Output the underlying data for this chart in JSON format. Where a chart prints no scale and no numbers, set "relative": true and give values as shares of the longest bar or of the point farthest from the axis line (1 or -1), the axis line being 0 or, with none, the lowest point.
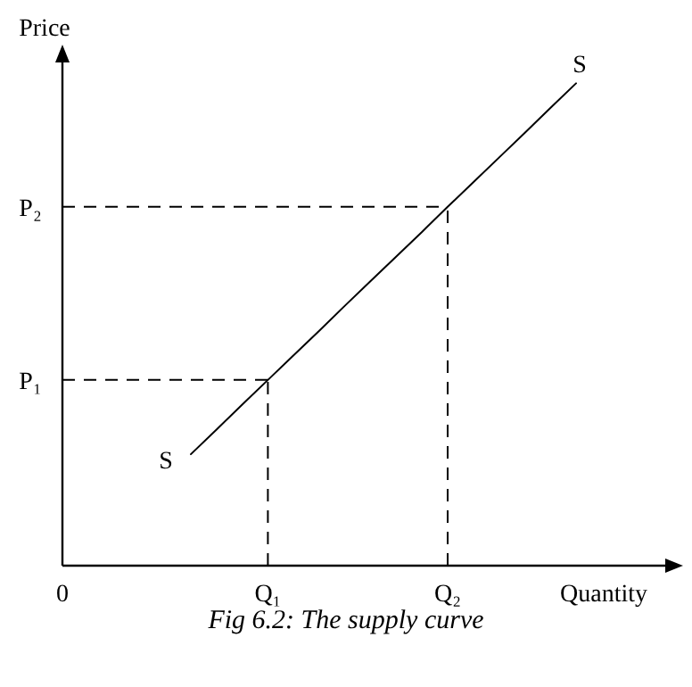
{
  "chart_data": {
    "type": "line",
    "title": "Fig 6.2: The supply curve",
    "xlabel": "Quantity",
    "ylabel": "Price",
    "relative": true,
    "grid": false,
    "categories": [
      "0",
      null,
      null,
      null,
      null,
      null,
      null,
      null,
      "Q₁",
      null,
      null,
      null,
      null,
      null,
      null,
      "Q₂",
      null,
      null,
      null,
      null,
      null
    ],
    "series": [
      {
        "name": "S",
        "color": "#000000",
        "line_style": "solid",
        "values": [
          null,
          null,
          null,
          null,
          null,
          0.231,
          0.282,
          0.334,
          0.385,
          0.436,
          0.487,
          0.539,
          0.59,
          0.641,
          0.692,
          0.744,
          0.795,
          0.846,
          0.897,
          0.949,
          1
        ]
      }
    ],
    "ref_lines": [
      {
        "axis": "y",
        "value": 0.385,
        "label": "P₁",
        "color": "#000000",
        "line_style": "dashed"
      },
      {
        "axis": "x",
        "value": "Q₁",
        "color": "#000000",
        "line_style": "dashed"
      },
      {
        "axis": "y",
        "value": 0.744,
        "label": "P₂",
        "color": "#000000",
        "line_style": "dashed"
      },
      {
        "axis": "x",
        "value": "Q₂",
        "color": "#000000",
        "line_style": "dashed"
      }
    ]
  }
}
